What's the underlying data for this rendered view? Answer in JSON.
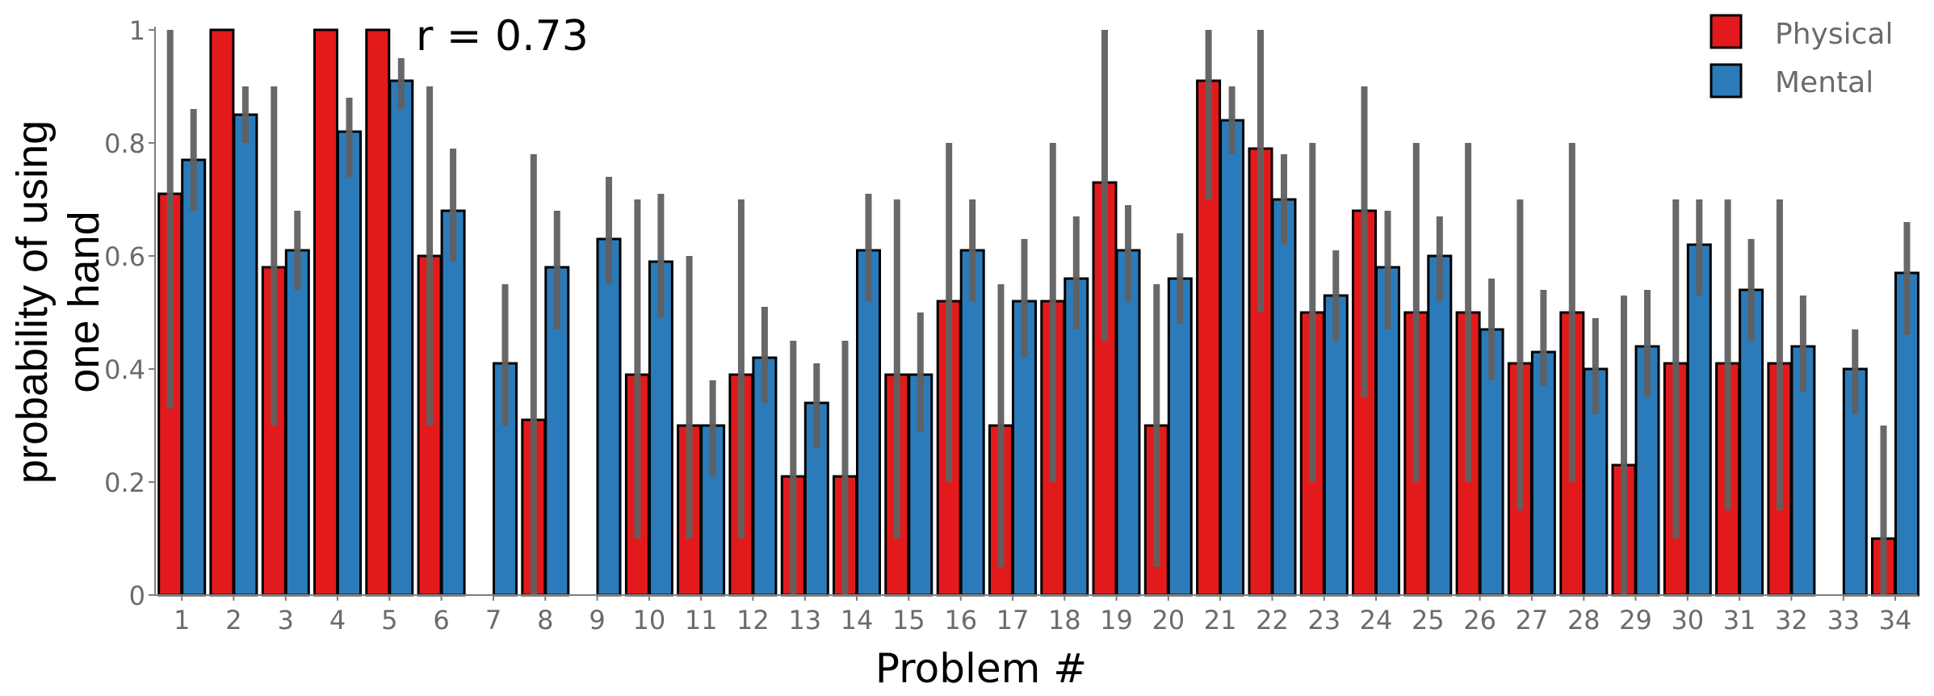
{
  "chart_data": {
    "type": "bar",
    "title": "",
    "xlabel": "Problem #",
    "ylabel_lines": [
      "probability of using",
      "one hand"
    ],
    "annotation": "r = 0.73",
    "ylim": [
      0,
      1
    ],
    "yticks": [
      0,
      0.2,
      0.4,
      0.6,
      0.8,
      1
    ],
    "ytick_labels": [
      "0",
      "0.2",
      "0.4",
      "0.6",
      "0.8",
      "1"
    ],
    "grid": false,
    "legend_position": "top-right",
    "categories": [
      "1",
      "2",
      "3",
      "4",
      "5",
      "6",
      "7",
      "8",
      "9",
      "10",
      "11",
      "12",
      "13",
      "14",
      "15",
      "16",
      "17",
      "18",
      "19",
      "20",
      "21",
      "22",
      "23",
      "24",
      "25",
      "26",
      "27",
      "28",
      "29",
      "30",
      "31",
      "32",
      "33",
      "34"
    ],
    "series": [
      {
        "name": "Physical",
        "color": "#e31a1c",
        "values": [
          0.71,
          1.0,
          0.58,
          1.0,
          1.0,
          0.6,
          null,
          0.31,
          null,
          0.39,
          0.3,
          0.39,
          0.21,
          0.21,
          0.39,
          0.52,
          0.3,
          0.52,
          0.73,
          0.3,
          0.91,
          0.79,
          0.5,
          0.68,
          0.5,
          0.5,
          0.41,
          0.5,
          0.23,
          0.41,
          0.41,
          0.41,
          null,
          0.1
        ],
        "error_low": [
          0.33,
          1.0,
          0.3,
          1.0,
          1.0,
          0.3,
          null,
          0.0,
          null,
          0.1,
          0.1,
          0.1,
          0.0,
          0.0,
          0.1,
          0.2,
          0.05,
          0.2,
          0.45,
          0.05,
          0.7,
          0.5,
          0.2,
          0.35,
          0.2,
          0.2,
          0.15,
          0.2,
          0.0,
          0.1,
          0.15,
          0.15,
          null,
          0.0
        ],
        "error_high": [
          1.0,
          1.0,
          0.9,
          1.0,
          1.0,
          0.9,
          null,
          0.78,
          null,
          0.7,
          0.6,
          0.7,
          0.45,
          0.45,
          0.7,
          0.8,
          0.55,
          0.8,
          1.0,
          0.55,
          1.0,
          1.0,
          0.8,
          0.9,
          0.8,
          0.8,
          0.7,
          0.8,
          0.53,
          0.7,
          0.7,
          0.7,
          null,
          0.3
        ]
      },
      {
        "name": "Mental",
        "color": "#2b7bba",
        "values": [
          0.77,
          0.85,
          0.61,
          0.82,
          0.91,
          0.68,
          0.41,
          0.58,
          0.63,
          0.59,
          0.3,
          0.42,
          0.34,
          0.61,
          0.39,
          0.61,
          0.52,
          0.56,
          0.61,
          0.56,
          0.84,
          0.7,
          0.53,
          0.58,
          0.6,
          0.47,
          0.43,
          0.4,
          0.44,
          0.62,
          0.54,
          0.44,
          0.4,
          0.57
        ],
        "error_low": [
          0.68,
          0.8,
          0.54,
          0.74,
          0.86,
          0.59,
          0.3,
          0.47,
          0.55,
          0.49,
          0.21,
          0.34,
          0.26,
          0.52,
          0.29,
          0.52,
          0.42,
          0.47,
          0.52,
          0.48,
          0.78,
          0.62,
          0.45,
          0.47,
          0.52,
          0.38,
          0.37,
          0.32,
          0.35,
          0.53,
          0.45,
          0.36,
          0.32,
          0.46
        ],
        "error_high": [
          0.86,
          0.9,
          0.68,
          0.88,
          0.95,
          0.79,
          0.55,
          0.68,
          0.74,
          0.71,
          0.38,
          0.51,
          0.41,
          0.71,
          0.5,
          0.7,
          0.63,
          0.67,
          0.69,
          0.64,
          0.9,
          0.78,
          0.61,
          0.68,
          0.67,
          0.56,
          0.54,
          0.49,
          0.54,
          0.7,
          0.63,
          0.53,
          0.47,
          0.66
        ]
      }
    ]
  },
  "colors": {
    "physical": "#e31a1c",
    "mental": "#2b7bba",
    "error_bar": "#606060",
    "bar_stroke": "#000000",
    "axis": "#7f7f7f",
    "tick_text": "#6b6b6b"
  }
}
